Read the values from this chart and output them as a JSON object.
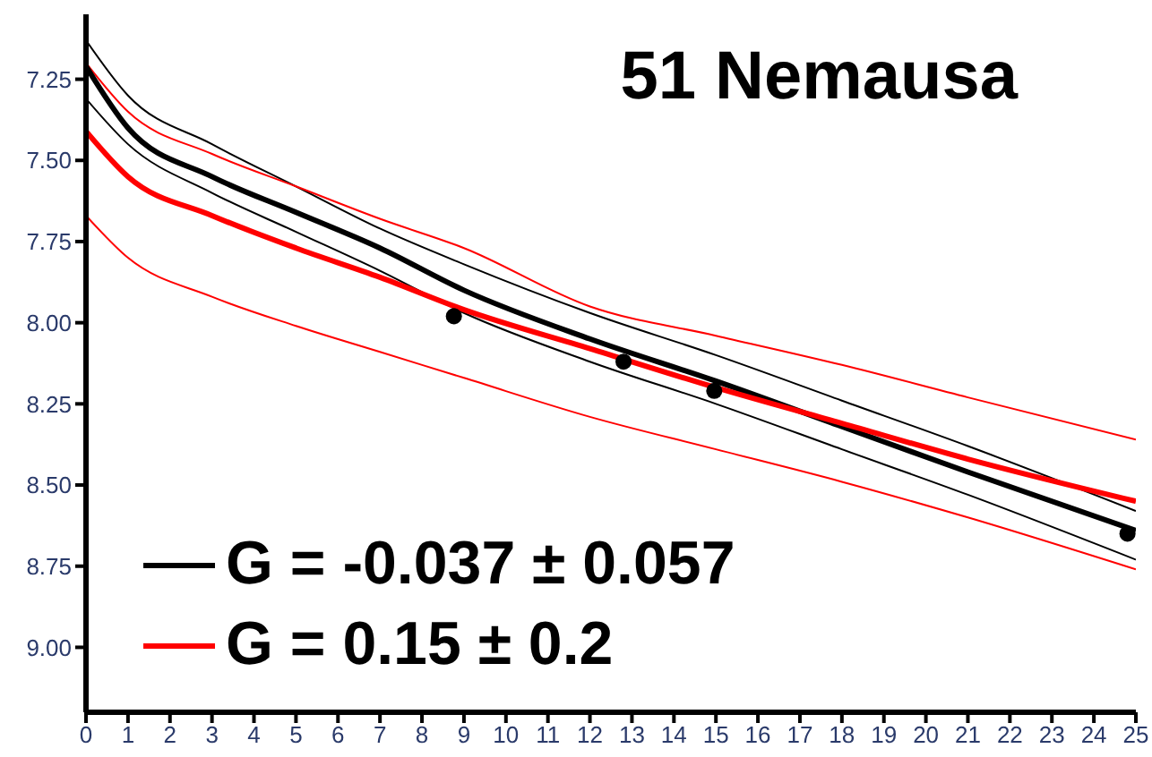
{
  "chart_data": {
    "type": "line",
    "title": "51 Nemausa",
    "x": [
      0,
      1,
      3,
      5,
      7,
      9,
      12,
      15,
      18,
      21,
      25
    ],
    "series": [
      {
        "color": "#000000",
        "values": [
          7.13,
          7.3,
          7.45,
          7.58,
          7.71,
          7.82,
          7.97,
          8.1,
          8.24,
          8.38,
          8.58
        ]
      },
      {
        "color": "#000000",
        "values": [
          7.31,
          7.45,
          7.6,
          7.72,
          7.84,
          7.97,
          8.12,
          8.25,
          8.39,
          8.53,
          8.73
        ]
      },
      {
        "color": "#ff0000",
        "values": [
          7.2,
          7.35,
          7.48,
          7.58,
          7.68,
          7.77,
          7.95,
          8.04,
          8.13,
          8.23,
          8.36
        ]
      },
      {
        "color": "#ff0000",
        "values": [
          7.67,
          7.8,
          7.92,
          8.01,
          8.09,
          8.17,
          8.29,
          8.39,
          8.49,
          8.6,
          8.76
        ]
      },
      {
        "name": "G = -0.037 ± 0.057",
        "color": "#000000",
        "values": [
          7.21,
          7.4,
          7.55,
          7.66,
          7.77,
          7.9,
          8.05,
          8.18,
          8.32,
          8.46,
          8.64
        ]
      },
      {
        "name": "G = 0.15 ± 0.2",
        "color": "#ff0000",
        "values": [
          7.41,
          7.55,
          7.67,
          7.77,
          7.86,
          7.96,
          8.08,
          8.2,
          8.31,
          8.42,
          8.55
        ]
      },
      {
        "type": "scatter",
        "marker": "circle",
        "color": "#000000",
        "x": [
          8.76,
          12.8,
          14.96,
          24.8
        ],
        "values": [
          7.98,
          8.12,
          8.21,
          8.65
        ]
      }
    ],
    "xlim": [
      0,
      25
    ],
    "xticks": [
      0,
      1,
      2,
      3,
      4,
      5,
      6,
      7,
      8,
      9,
      10,
      11,
      12,
      13,
      14,
      15,
      16,
      17,
      18,
      19,
      20,
      21,
      22,
      23,
      24,
      25
    ],
    "ylim": [
      9.2,
      7.05
    ],
    "yticks": [
      {
        "value": 7.25,
        "label": "7.25"
      },
      {
        "value": 7.5,
        "label": "7.50"
      },
      {
        "value": 7.75,
        "label": "7.75"
      },
      {
        "value": 8,
        "label": "8.00"
      },
      {
        "value": 8.25,
        "label": "8.25"
      },
      {
        "value": 8.5,
        "label": "8.50"
      },
      {
        "value": 8.75,
        "label": "8.75"
      },
      {
        "value": 9,
        "label": "9.00"
      }
    ],
    "grid": false,
    "legend": "bottom left",
    "line_style": "solid"
  }
}
